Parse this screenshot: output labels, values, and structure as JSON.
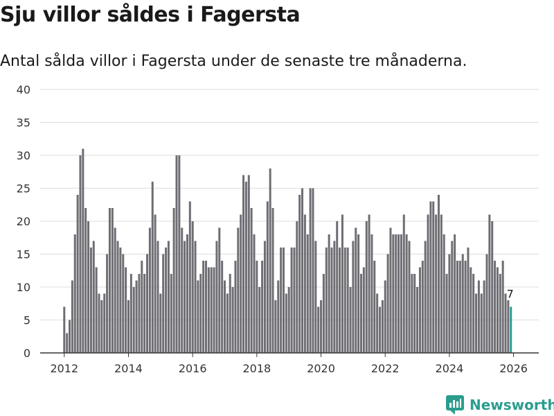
{
  "header": {
    "title": "Sju villor såldes i Fagersta",
    "subtitle": "Antal sålda villor i Fagersta under de senaste tre månaderna."
  },
  "brand": {
    "name": "Newsworthy",
    "color": "#2a9d8f"
  },
  "colors": {
    "bar": "#6e6d73",
    "highlight": "#2a9d8f",
    "grid": "#dddddd"
  },
  "chart_data": {
    "type": "bar",
    "title": "Sju villor såldes i Fagersta",
    "subtitle": "Antal sålda villor i Fagersta under de senaste tre månaderna.",
    "xlabel": "",
    "ylabel": "",
    "ylim": [
      0,
      40
    ],
    "yticks": [
      "0",
      "5",
      "10",
      "15",
      "20",
      "25",
      "30",
      "35",
      "40"
    ],
    "xticks": [
      "2012",
      "2014",
      "2016",
      "2018",
      "2020",
      "2022",
      "2024",
      "2026"
    ],
    "start": "2012-01",
    "frequency": "monthly",
    "highlight_label": "7",
    "values": [
      7,
      3,
      5,
      11,
      18,
      24,
      30,
      31,
      22,
      20,
      16,
      17,
      13,
      9,
      8,
      9,
      15,
      22,
      22,
      19,
      17,
      16,
      15,
      13,
      8,
      12,
      10,
      11,
      12,
      14,
      12,
      15,
      19,
      26,
      21,
      17,
      9,
      15,
      16,
      17,
      12,
      22,
      30,
      30,
      19,
      17,
      18,
      23,
      20,
      17,
      11,
      12,
      14,
      14,
      13,
      13,
      13,
      17,
      19,
      14,
      11,
      9,
      12,
      10,
      14,
      19,
      21,
      27,
      26,
      27,
      22,
      18,
      14,
      10,
      14,
      17,
      23,
      28,
      22,
      8,
      11,
      16,
      16,
      9,
      10,
      16,
      16,
      20,
      24,
      25,
      21,
      18,
      25,
      25,
      17,
      7,
      8,
      12,
      16,
      18,
      16,
      17,
      20,
      16,
      21,
      16,
      16,
      10,
      17,
      19,
      18,
      12,
      13,
      20,
      21,
      18,
      14,
      9,
      7,
      8,
      11,
      15,
      19,
      18,
      18,
      18,
      18,
      21,
      18,
      17,
      12,
      12,
      10,
      13,
      14,
      17,
      21,
      23,
      23,
      21,
      24,
      21,
      18,
      12,
      15,
      17,
      18,
      14,
      14,
      15,
      14,
      16,
      13,
      12,
      9,
      11,
      9,
      11,
      15,
      21,
      20,
      14,
      13,
      12,
      14,
      9,
      8,
      7
    ]
  }
}
